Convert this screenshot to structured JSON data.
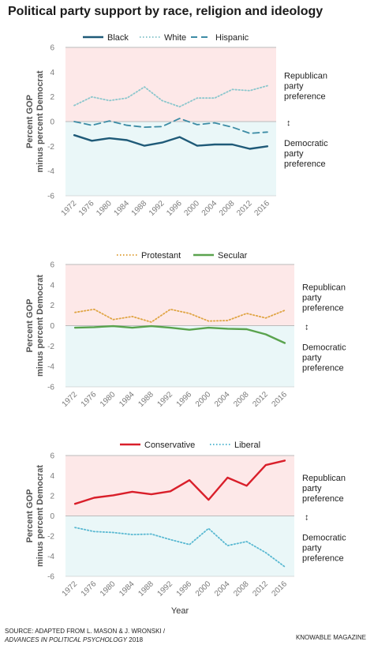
{
  "title": "Political party support by race, religion and ideology",
  "annotations": {
    "republican": [
      "Republican",
      "party",
      "preference"
    ],
    "democratic": [
      "Democratic",
      "party",
      "preference"
    ],
    "arrow": "↕"
  },
  "colors": {
    "republican_band": "#fde8e8",
    "democratic_band": "#eaf7f8",
    "axis_line": "#bbbbbb",
    "black_series": "#1f5a78",
    "white_series": "#8cc7cd",
    "hispanic_series": "#3d8ca5",
    "protestant_series": "#e0a545",
    "secular_series": "#5aa34e",
    "conservative_series": "#d91f2a",
    "liberal_series": "#5ab9d2"
  },
  "chart_data": [
    {
      "type": "line",
      "ylabel": "Percent GOP minus percent Democrat",
      "xlabel": "",
      "ylim": [
        -6,
        6
      ],
      "yticks": [
        "6",
        "4",
        "2",
        "0",
        "-2",
        "-4",
        "-6"
      ],
      "x": [
        "1972",
        "1976",
        "1980",
        "1984",
        "1988",
        "1992",
        "1996",
        "2000",
        "2004",
        "2008",
        "2012",
        "2016"
      ],
      "legend_position": "top",
      "series": [
        {
          "name": "Black",
          "style": "solid",
          "color": "#1f5a78",
          "values": [
            -1.1,
            -1.55,
            -1.35,
            -1.5,
            -1.95,
            -1.7,
            -1.25,
            -1.95,
            -1.85,
            -1.85,
            -2.2,
            -2.0
          ]
        },
        {
          "name": "White",
          "style": "dotted",
          "color": "#8cc7cd",
          "values": [
            1.3,
            2.0,
            1.7,
            1.9,
            2.8,
            1.7,
            1.2,
            1.9,
            1.9,
            2.6,
            2.5,
            2.9
          ]
        },
        {
          "name": "Hispanic",
          "style": "dashed",
          "color": "#3d8ca5",
          "values": [
            0.0,
            -0.3,
            0.05,
            -0.3,
            -0.45,
            -0.4,
            0.25,
            -0.25,
            -0.1,
            -0.45,
            -0.95,
            -0.85
          ]
        }
      ]
    },
    {
      "type": "line",
      "ylabel": "Percent GOP minus percent Democrat",
      "xlabel": "",
      "ylim": [
        -6,
        6
      ],
      "yticks": [
        "6",
        "4",
        "2",
        "0",
        "-2",
        "-4",
        "-6"
      ],
      "x": [
        "1972",
        "1976",
        "1980",
        "1984",
        "1988",
        "1992",
        "1996",
        "2000",
        "2004",
        "2008",
        "2012",
        "2016"
      ],
      "legend_position": "top",
      "series": [
        {
          "name": "Protestant",
          "style": "dotted",
          "color": "#e0a545",
          "values": [
            1.3,
            1.6,
            0.6,
            0.9,
            0.35,
            1.6,
            1.2,
            0.45,
            0.5,
            1.2,
            0.75,
            1.5
          ]
        },
        {
          "name": "Secular",
          "style": "solid",
          "color": "#5aa34e",
          "values": [
            -0.2,
            -0.15,
            -0.05,
            -0.2,
            -0.05,
            -0.2,
            -0.4,
            -0.2,
            -0.3,
            -0.35,
            -0.85,
            -1.7
          ]
        }
      ]
    },
    {
      "type": "line",
      "ylabel": "Percent GOP minus percent Democrat",
      "xlabel": "Year",
      "ylim": [
        -6,
        6
      ],
      "yticks": [
        "6",
        "4",
        "2",
        "0",
        "-2",
        "-4",
        "-6"
      ],
      "x": [
        "1972",
        "1976",
        "1980",
        "1984",
        "1988",
        "1992",
        "1996",
        "2000",
        "2004",
        "2008",
        "2012",
        "2016"
      ],
      "legend_position": "top",
      "series": [
        {
          "name": "Conservative",
          "style": "solid",
          "color": "#d91f2a",
          "values": [
            1.2,
            1.8,
            2.05,
            2.4,
            2.15,
            2.45,
            3.55,
            1.6,
            3.8,
            3.0,
            5.05,
            5.5
          ]
        },
        {
          "name": "Liberal",
          "style": "dotted",
          "color": "#5ab9d2",
          "values": [
            -1.15,
            -1.55,
            -1.65,
            -1.85,
            -1.8,
            -2.35,
            -2.85,
            -1.25,
            -2.95,
            -2.55,
            -3.65,
            -5.05
          ]
        }
      ]
    }
  ],
  "footer": {
    "source_line1": "SOURCE: ADAPTED FROM L. MASON & J. WRONSKI /",
    "source_line2_italic": "ADVANCES IN POLITICAL PSYCHOLOGY",
    "source_line2_rest": " 2018",
    "credit": "KNOWABLE MAGAZINE"
  }
}
